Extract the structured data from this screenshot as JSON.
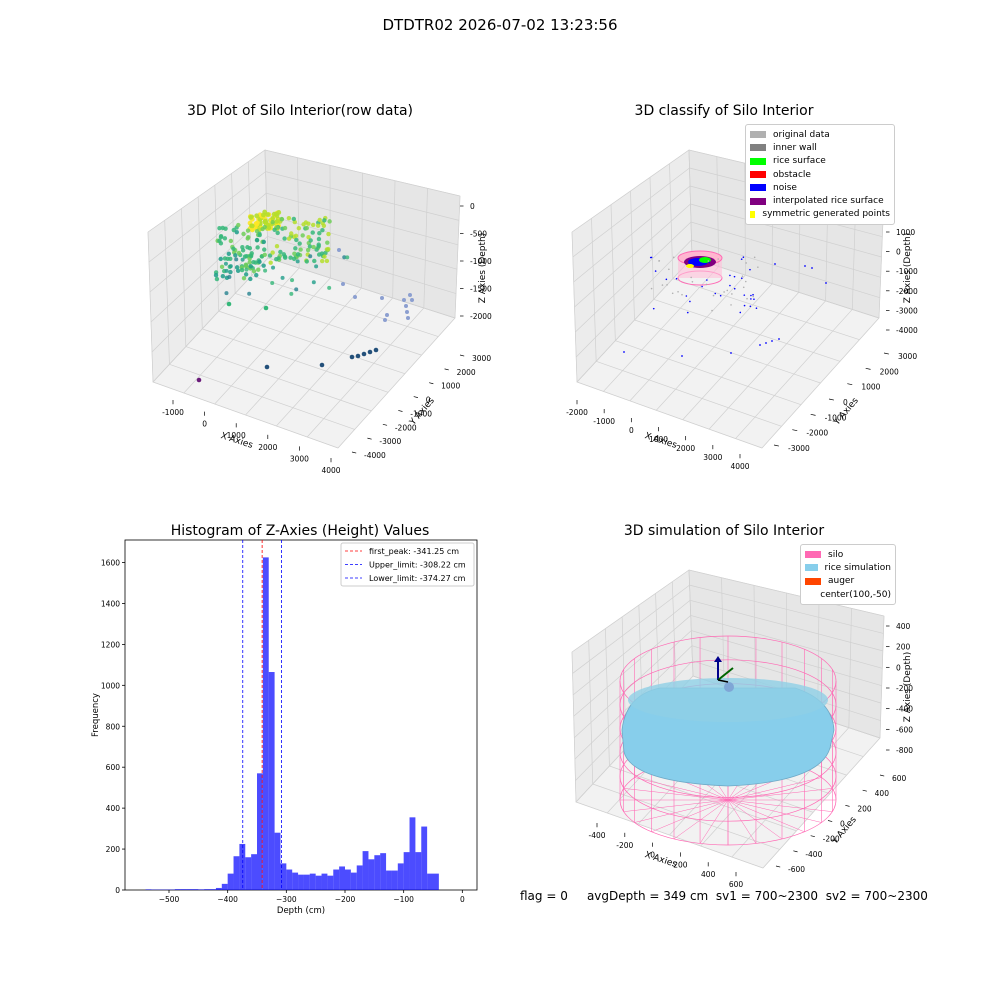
{
  "suptitle": "DTDTR02 2026-07-02 13:23:56",
  "footer": {
    "flag": "flag = 0",
    "avg_depth": "avgDepth = 349 cm",
    "sv1": "sv1 = 700~2300",
    "sv2": "sv2 = 700~2300"
  },
  "chart_data": [
    {
      "type": "scatter",
      "title": "3D Plot of Silo Interior(row data)",
      "xlabel": "X Axies",
      "ylabel": "Y Axies",
      "zlabel": "Z Axies (Depth)",
      "x_ticks": [
        "-1000",
        "0",
        "1000",
        "2000",
        "3000",
        "4000"
      ],
      "y_ticks": [
        "-4000",
        "-3000",
        "-2000",
        "-1000",
        "0",
        "1000",
        "2000",
        "3000"
      ],
      "z_ticks": [
        "0",
        "-500",
        "-1000",
        "-1500",
        "-2000"
      ],
      "xlim": [
        -1500,
        4200
      ],
      "ylim": [
        -4200,
        3300
      ],
      "zlim": [
        -2500,
        100
      ]
    },
    {
      "type": "scatter",
      "title": "3D classify of Silo Interior",
      "xlabel": "X Axies",
      "ylabel": "Y Axies",
      "zlabel": "Z Axies (Depth)",
      "x_ticks": [
        "-2000",
        "-1000",
        "0",
        "1000",
        "2000",
        "3000",
        "4000"
      ],
      "y_ticks": [
        "-3000",
        "-2000",
        "-1000",
        "0",
        "1000",
        "2000",
        "3000"
      ],
      "z_ticks": [
        "1000",
        "0",
        "-1000",
        "-2000",
        "-3000",
        "-4000"
      ],
      "legend": [
        {
          "label": "original data",
          "color": "#b0b0b0"
        },
        {
          "label": "inner wall",
          "color": "#808080"
        },
        {
          "label": "rice surface",
          "color": "#00ff00"
        },
        {
          "label": "obstacle",
          "color": "#ff0000"
        },
        {
          "label": "noise",
          "color": "#0000ff"
        },
        {
          "label": "interpolated rice surface",
          "color": "#800080"
        },
        {
          "label": "symmetric generated points",
          "color": "#ffff00"
        }
      ]
    },
    {
      "type": "bar",
      "title": "Histogram of Z-Axies (Height) Values",
      "xlabel": "Depth (cm)",
      "ylabel": "Frequency",
      "xlim": [
        -575,
        25
      ],
      "ylim": [
        0,
        1710
      ],
      "x_ticks": [
        -500,
        -400,
        -300,
        -200,
        -100,
        0
      ],
      "y_ticks": [
        0,
        200,
        400,
        600,
        800,
        1000,
        1200,
        1400,
        1600
      ],
      "bin_width": 10,
      "bins": [
        [
          -540,
          3
        ],
        [
          -530,
          2
        ],
        [
          -520,
          2
        ],
        [
          -510,
          2
        ],
        [
          -500,
          2
        ],
        [
          -490,
          4
        ],
        [
          -480,
          4
        ],
        [
          -470,
          4
        ],
        [
          -460,
          4
        ],
        [
          -450,
          3
        ],
        [
          -440,
          4
        ],
        [
          -430,
          4
        ],
        [
          -420,
          10
        ],
        [
          -410,
          30
        ],
        [
          -400,
          80
        ],
        [
          -390,
          165
        ],
        [
          -380,
          225
        ],
        [
          -370,
          160
        ],
        [
          -360,
          175
        ],
        [
          -350,
          570
        ],
        [
          -340,
          1625
        ],
        [
          -330,
          1065
        ],
        [
          -320,
          280
        ],
        [
          -310,
          130
        ],
        [
          -300,
          100
        ],
        [
          -290,
          85
        ],
        [
          -280,
          75
        ],
        [
          -270,
          75
        ],
        [
          -260,
          80
        ],
        [
          -250,
          70
        ],
        [
          -240,
          80
        ],
        [
          -230,
          70
        ],
        [
          -220,
          100
        ],
        [
          -210,
          115
        ],
        [
          -200,
          100
        ],
        [
          -190,
          85
        ],
        [
          -180,
          120
        ],
        [
          -170,
          190
        ],
        [
          -160,
          150
        ],
        [
          -150,
          170
        ],
        [
          -140,
          180
        ],
        [
          -130,
          95
        ],
        [
          -120,
          95
        ],
        [
          -110,
          130
        ],
        [
          -100,
          185
        ],
        [
          -90,
          355
        ],
        [
          -80,
          185
        ],
        [
          -70,
          310
        ],
        [
          -60,
          80
        ],
        [
          -50,
          80
        ]
      ],
      "bar_color": "#0000ff",
      "vlines": [
        {
          "label": "first_peak: -341.25 cm",
          "x": -341.25,
          "color": "#ff0000"
        },
        {
          "label": "Upper_limit: -308.22 cm",
          "x": -308.22,
          "color": "#0000ff"
        },
        {
          "label": "Lower_limit: -374.27 cm",
          "x": -374.27,
          "color": "#0000ff"
        }
      ],
      "legend_placement": "top-right"
    },
    {
      "type": "scatter",
      "title": "3D simulation of Silo Interior",
      "xlabel": "X Axies",
      "ylabel": "Y Axies",
      "zlabel": "Z Axies (Depth)",
      "x_ticks": [
        "-400",
        "-200",
        "0",
        "200",
        "400",
        "600"
      ],
      "y_ticks": [
        "-600",
        "-400",
        "-200",
        "0",
        "200",
        "400",
        "600"
      ],
      "z_ticks": [
        "400",
        "200",
        "0",
        "-200",
        "-400",
        "-600",
        "-800"
      ],
      "legend": [
        {
          "label": "silo",
          "color": "#ff69b4"
        },
        {
          "label": "rice simulation",
          "color": "#87ceeb"
        },
        {
          "label": "auger",
          "color": "#ff4500"
        },
        {
          "label": "center(100,-50)",
          "color": ""
        }
      ]
    }
  ]
}
